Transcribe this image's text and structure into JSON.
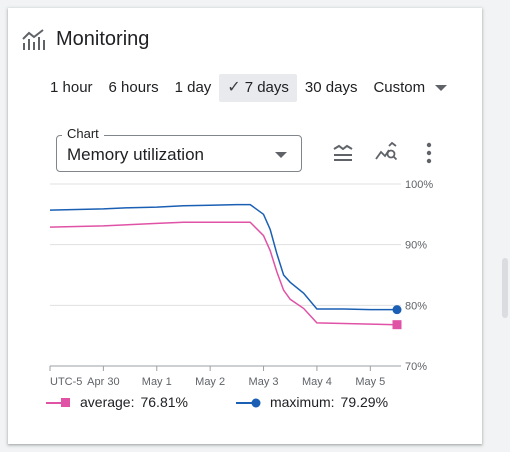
{
  "header": {
    "title": "Monitoring"
  },
  "time_ranges": [
    {
      "label": "1 hour",
      "selected": false
    },
    {
      "label": "6 hours",
      "selected": false
    },
    {
      "label": "1 day",
      "selected": false
    },
    {
      "label": "7 days",
      "selected": true
    },
    {
      "label": "30 days",
      "selected": false
    },
    {
      "label": "Custom",
      "selected": false
    }
  ],
  "chart_select": {
    "label": "Chart",
    "value": "Memory utilization"
  },
  "legend": {
    "average": {
      "name": "average:",
      "value": "76.81%"
    },
    "maximum": {
      "name": "maximum:",
      "value": "79.29%"
    }
  },
  "colors": {
    "average": "#e052a6",
    "maximum": "#1a5fb4",
    "accent": "#1a73e8"
  },
  "chart_data": {
    "type": "line",
    "timezone_label": "UTC-5",
    "x_tick_labels": [
      "Apr 30",
      "May 1",
      "May 2",
      "May 3",
      "May 4",
      "May 5"
    ],
    "x_range": [
      "2024-04-29 00:00",
      "2024-05-05 12:00"
    ],
    "ylim": [
      70,
      100
    ],
    "y_ticks": [
      "70%",
      "80%",
      "90%",
      "100%"
    ],
    "y_axis_side": "right",
    "grid": true,
    "series": [
      {
        "name": "average",
        "x": [
          "2024-04-29 00:00",
          "2024-04-29 12:00",
          "2024-04-30 00:00",
          "2024-04-30 12:00",
          "2024-05-01 00:00",
          "2024-05-01 12:00",
          "2024-05-02 00:00",
          "2024-05-02 12:00",
          "2024-05-02 18:00",
          "2024-05-03 00:00",
          "2024-05-03 03:00",
          "2024-05-03 06:00",
          "2024-05-03 09:00",
          "2024-05-03 12:00",
          "2024-05-03 18:00",
          "2024-05-04 00:00",
          "2024-05-04 12:00",
          "2024-05-05 00:00",
          "2024-05-05 12:00"
        ],
        "values": [
          92.9,
          93.0,
          93.1,
          93.3,
          93.5,
          93.7,
          93.7,
          93.7,
          93.7,
          91.5,
          89.0,
          85.5,
          82.5,
          81.0,
          79.5,
          77.1,
          77.0,
          76.9,
          76.81
        ]
      },
      {
        "name": "maximum",
        "x": [
          "2024-04-29 00:00",
          "2024-04-29 12:00",
          "2024-04-30 00:00",
          "2024-04-30 12:00",
          "2024-05-01 00:00",
          "2024-05-01 12:00",
          "2024-05-02 00:00",
          "2024-05-02 12:00",
          "2024-05-02 18:00",
          "2024-05-03 00:00",
          "2024-05-03 03:00",
          "2024-05-03 06:00",
          "2024-05-03 09:00",
          "2024-05-03 12:00",
          "2024-05-03 18:00",
          "2024-05-04 00:00",
          "2024-05-04 12:00",
          "2024-05-05 00:00",
          "2024-05-05 12:00"
        ],
        "values": [
          95.7,
          95.8,
          95.9,
          96.1,
          96.2,
          96.4,
          96.5,
          96.6,
          96.6,
          95.0,
          92.5,
          88.5,
          85.0,
          83.8,
          82.0,
          79.4,
          79.4,
          79.3,
          79.29
        ]
      }
    ]
  }
}
